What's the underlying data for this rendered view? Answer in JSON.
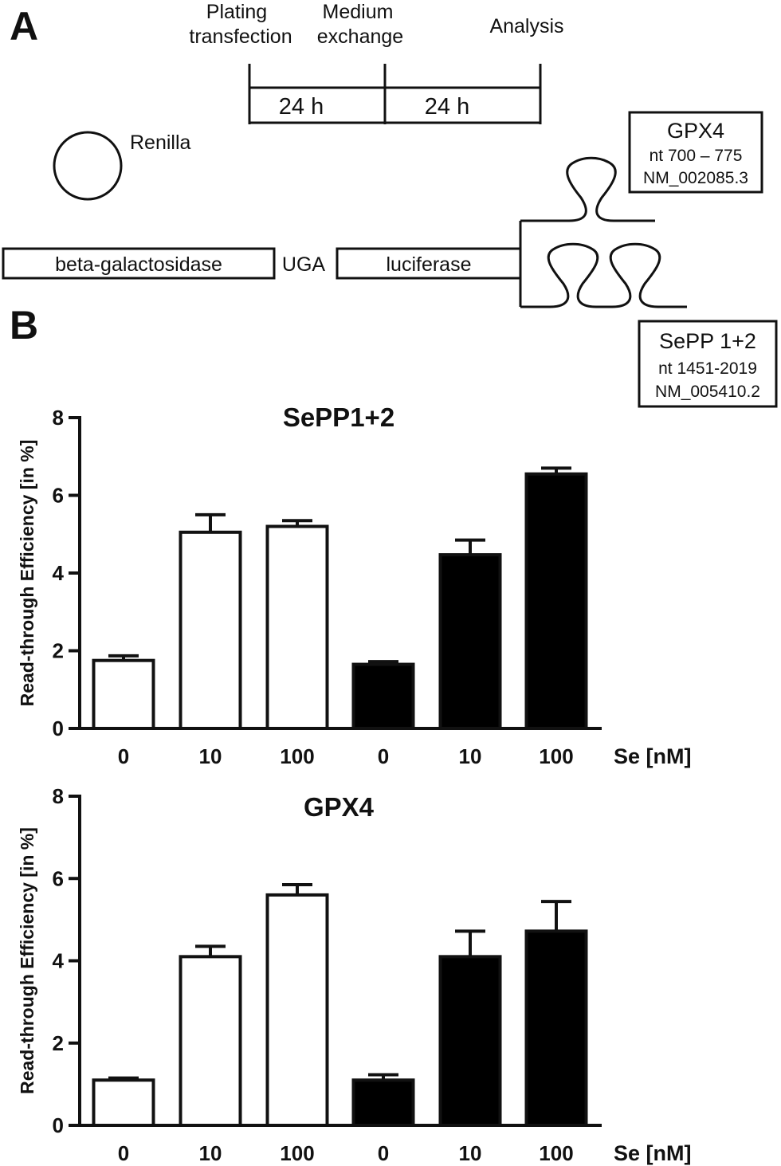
{
  "panel_a": {
    "letter": "A",
    "timeline": {
      "step1": [
        "Plating",
        "transfection"
      ],
      "step2": [
        "Medium",
        "exchange"
      ],
      "step3": "Analysis",
      "interval1": "24 h",
      "interval2": "24 h"
    },
    "renilla": "Renilla",
    "construct": {
      "left": "beta-galactosidase",
      "codon": "UGA",
      "right": "luciferase"
    },
    "gpx4_box": {
      "title": "GPX4",
      "nt": "nt 700 – 775",
      "accession": "NM_002085.3"
    },
    "sepp_box": {
      "title": "SePP 1+2",
      "nt": "nt 1451-2019",
      "accession": "NM_005410.2"
    }
  },
  "panel_b": {
    "letter": "B"
  },
  "colors": {
    "open_bar": "#ffffff",
    "filled_bar": "#000000",
    "ink": "#111111"
  },
  "chart_data": [
    {
      "type": "bar",
      "title": "SePP1+2",
      "ylabel": "Read-through Efficiency [in %]",
      "xlabel": "Se [nM]",
      "categories": [
        "0",
        "10",
        "100",
        "0",
        "10",
        "100"
      ],
      "values": [
        1.75,
        5.05,
        5.2,
        1.65,
        4.47,
        6.55
      ],
      "errors": [
        0.12,
        0.45,
        0.15,
        0.07,
        0.38,
        0.15
      ],
      "fill": [
        "open",
        "open",
        "open",
        "filled",
        "filled",
        "filled"
      ],
      "yticks": [
        0,
        2,
        4,
        6,
        8
      ],
      "ylim": [
        0,
        8
      ]
    },
    {
      "type": "bar",
      "title": "GPX4",
      "ylabel": "Read-through Efficiency [in %]",
      "xlabel": "Se [nM]",
      "categories": [
        "0",
        "10",
        "100",
        "0",
        "10",
        "100"
      ],
      "values": [
        1.1,
        4.1,
        5.6,
        1.1,
        4.1,
        4.72
      ],
      "errors": [
        0.05,
        0.25,
        0.25,
        0.13,
        0.62,
        0.72
      ],
      "fill": [
        "open",
        "open",
        "open",
        "filled",
        "filled",
        "filled"
      ],
      "yticks": [
        0,
        2,
        4,
        6,
        8
      ],
      "ylim": [
        0,
        8
      ]
    }
  ]
}
